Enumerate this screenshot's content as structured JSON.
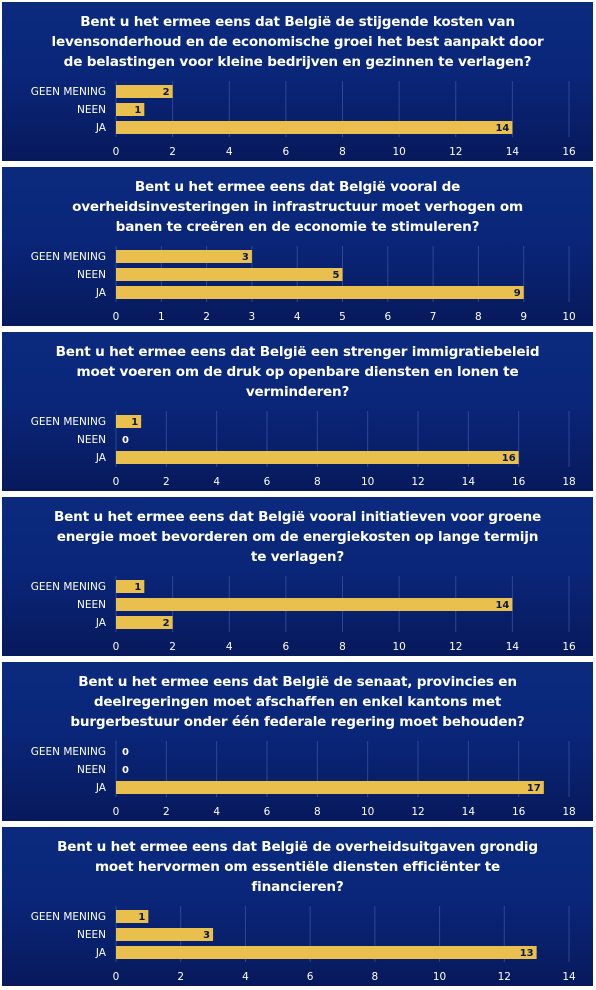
{
  "chart_data": [
    {
      "type": "bar",
      "title_lines": [
        "Bent u het ermee eens dat België de stijgende kosten van",
        "levensonderhoud en de economische groei het best aanpakt door",
        "de belastingen voor kleine bedrijven en gezinnen te verlagen?"
      ],
      "categories": [
        "GEEN MENING",
        "NEEN",
        "JA"
      ],
      "values": [
        2,
        1,
        14
      ],
      "xlim": [
        0,
        16
      ],
      "ticks": [
        "0",
        "2",
        "4",
        "6",
        "8",
        "10",
        "12",
        "14",
        "16"
      ]
    },
    {
      "type": "bar",
      "title_lines": [
        "Bent u het ermee eens dat België vooral de",
        "overheidsinvesteringen in infrastructuur moet verhogen om",
        "banen te creëren en de economie te stimuleren?"
      ],
      "categories": [
        "GEEN MENING",
        "NEEN",
        "JA"
      ],
      "values": [
        3,
        5,
        9
      ],
      "xlim": [
        0,
        10
      ],
      "ticks": [
        "0",
        "1",
        "2",
        "3",
        "4",
        "5",
        "6",
        "7",
        "8",
        "9",
        "10"
      ]
    },
    {
      "type": "bar",
      "title_lines": [
        "Bent u het ermee eens dat België een strenger immigratiebeleid",
        "moet voeren om de druk op openbare diensten en lonen te",
        "verminderen?"
      ],
      "categories": [
        "GEEN MENING",
        "NEEN",
        "JA"
      ],
      "values": [
        1,
        0,
        16
      ],
      "xlim": [
        0,
        18
      ],
      "ticks": [
        "0",
        "2",
        "4",
        "6",
        "8",
        "10",
        "12",
        "14",
        "16",
        "18"
      ]
    },
    {
      "type": "bar",
      "title_lines": [
        "Bent u het ermee eens dat België vooral initiatieven voor groene",
        "energie moet bevorderen om de energiekosten op lange termijn",
        "te verlagen?"
      ],
      "categories": [
        "GEEN MENING",
        "NEEN",
        "JA"
      ],
      "values": [
        1,
        14,
        2
      ],
      "xlim": [
        0,
        16
      ],
      "ticks": [
        "0",
        "2",
        "4",
        "6",
        "8",
        "10",
        "12",
        "14",
        "16"
      ]
    },
    {
      "type": "bar",
      "title_lines": [
        "Bent u het ermee eens dat België de senaat, provincies en",
        "deelregeringen moet afschaffen en enkel kantons met",
        "burgerbestuur onder één federale regering moet behouden?"
      ],
      "categories": [
        "GEEN MENING",
        "NEEN",
        "JA"
      ],
      "values": [
        0,
        0,
        17
      ],
      "xlim": [
        0,
        18
      ],
      "ticks": [
        "0",
        "2",
        "4",
        "6",
        "8",
        "10",
        "12",
        "14",
        "16",
        "18"
      ]
    },
    {
      "type": "bar",
      "title_lines": [
        "Bent u het ermee eens dat België de overheidsuitgaven grondig",
        "moet hervormen om essentiële diensten efficiënter te",
        "financieren?"
      ],
      "categories": [
        "GEEN MENING",
        "NEEN",
        "JA"
      ],
      "values": [
        1,
        3,
        13
      ],
      "xlim": [
        0,
        14
      ],
      "ticks": [
        "0",
        "2",
        "4",
        "6",
        "8",
        "10",
        "12",
        "14"
      ]
    }
  ],
  "colors": {
    "bar": "#e9bf4d",
    "panel": "#0a2679"
  }
}
